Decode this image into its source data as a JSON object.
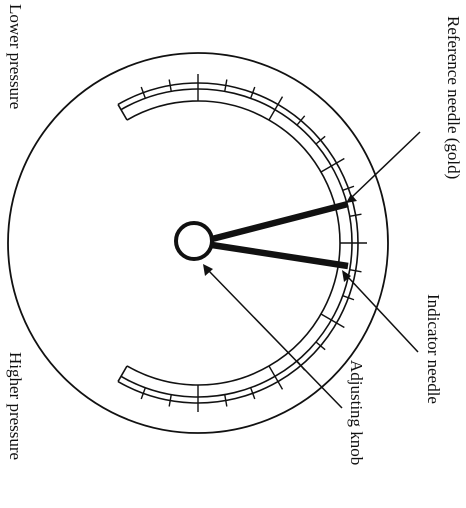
{
  "labels": {
    "lower_pressure": "Lower pressure",
    "higher_pressure": "Higher pressure",
    "reference_needle": "Reference needle (gold)",
    "indicator_needle": "Indicator needle",
    "adjusting_knob": "Adjusting knob"
  },
  "colors": {
    "ink": "#111111",
    "background": "#ffffff"
  }
}
